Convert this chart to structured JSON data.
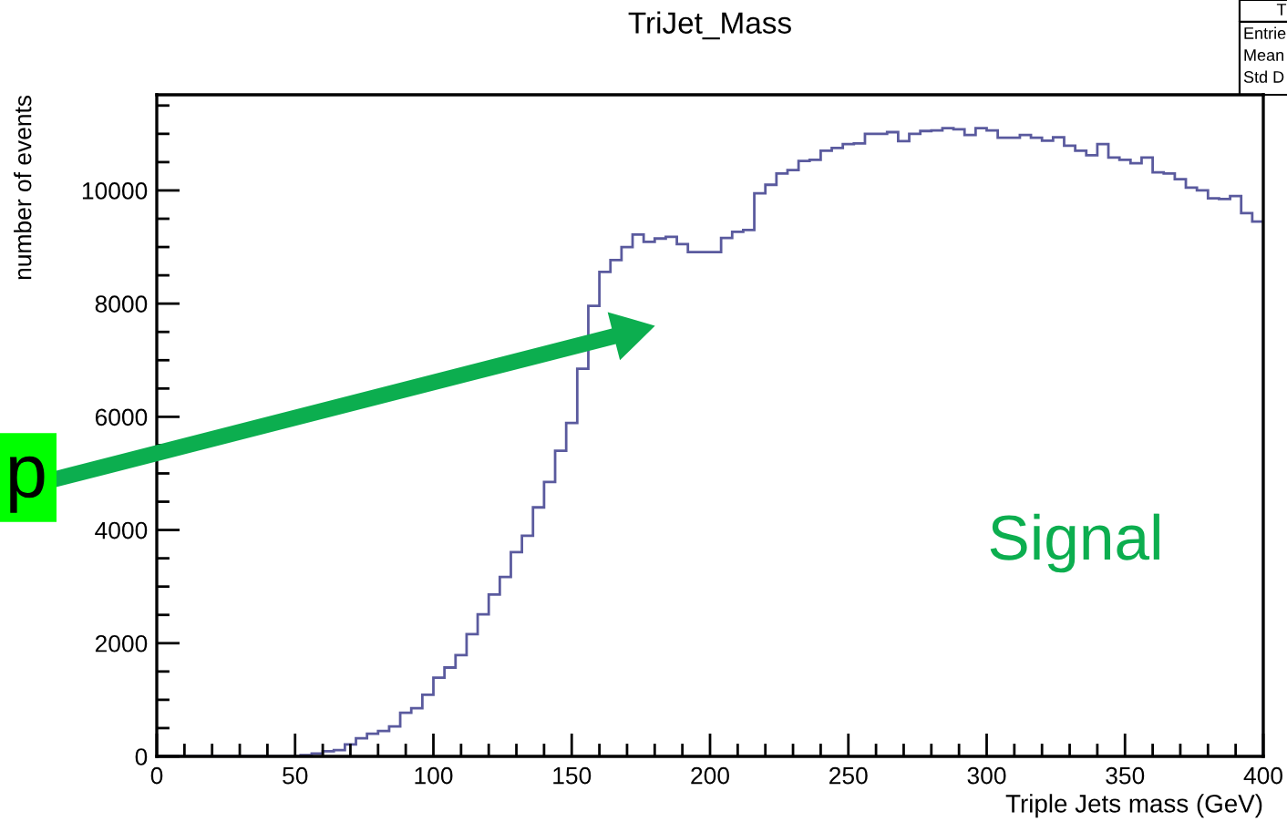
{
  "chart_data": {
    "type": "histogram",
    "title": "TriJet_Mass",
    "xlabel": "Triple Jets mass (GeV)",
    "ylabel": "number of events",
    "bins": [
      0,
      4,
      8,
      12,
      16,
      20,
      24,
      28,
      32,
      36,
      40,
      44,
      48,
      52,
      56,
      60,
      64,
      68,
      72,
      76,
      80,
      84,
      88,
      92,
      96,
      100,
      104,
      108,
      112,
      116,
      120,
      124,
      128,
      132,
      136,
      140,
      144,
      148,
      152,
      156,
      160,
      164,
      168,
      172,
      176,
      180,
      184,
      188,
      192,
      196,
      200,
      204,
      208,
      212,
      216,
      220,
      224,
      228,
      232,
      236,
      240,
      244,
      248,
      252,
      256,
      260,
      264,
      268,
      272,
      276,
      280,
      284,
      288,
      292,
      296,
      300,
      304,
      308,
      312,
      316,
      320,
      324,
      328,
      332,
      336,
      340,
      344,
      348,
      352,
      356,
      360,
      364,
      368,
      372,
      376,
      380,
      384,
      388,
      392,
      396,
      400
    ],
    "values": [
      0,
      0,
      0,
      0,
      0,
      0,
      0,
      0,
      0,
      0,
      0,
      0,
      0,
      20,
      50,
      90,
      110,
      210,
      320,
      400,
      450,
      530,
      770,
      850,
      1090,
      1390,
      1570,
      1790,
      2160,
      2510,
      2860,
      3170,
      3610,
      3900,
      4400,
      4850,
      5400,
      5890,
      6850,
      7960,
      8560,
      8770,
      9000,
      9220,
      9090,
      9150,
      9180,
      9050,
      8910,
      8910,
      8910,
      9160,
      9270,
      9300,
      9950,
      10100,
      10300,
      10360,
      10520,
      10540,
      10700,
      10750,
      10820,
      10830,
      11000,
      11000,
      11030,
      10870,
      11000,
      11050,
      11060,
      11100,
      11080,
      10980,
      11100,
      11060,
      10930,
      10930,
      10980,
      10930,
      10880,
      10940,
      10790,
      10700,
      10620,
      10820,
      10580,
      10540,
      10480,
      10580,
      10320,
      10300,
      10200,
      10050,
      10000,
      9860,
      9850,
      9900,
      9600,
      9450
    ],
    "color": "#5a5a9e",
    "xlim": [
      0,
      400
    ],
    "ylim": [
      0,
      11690
    ],
    "xticks": [
      0,
      50,
      100,
      150,
      200,
      250,
      300,
      350,
      400
    ],
    "yticks": [
      0,
      2000,
      4000,
      6000,
      8000,
      10000
    ],
    "grid": false,
    "annotations": [
      "p",
      "Signal",
      "T",
      "Entrie",
      "Mean",
      "Std D"
    ]
  }
}
